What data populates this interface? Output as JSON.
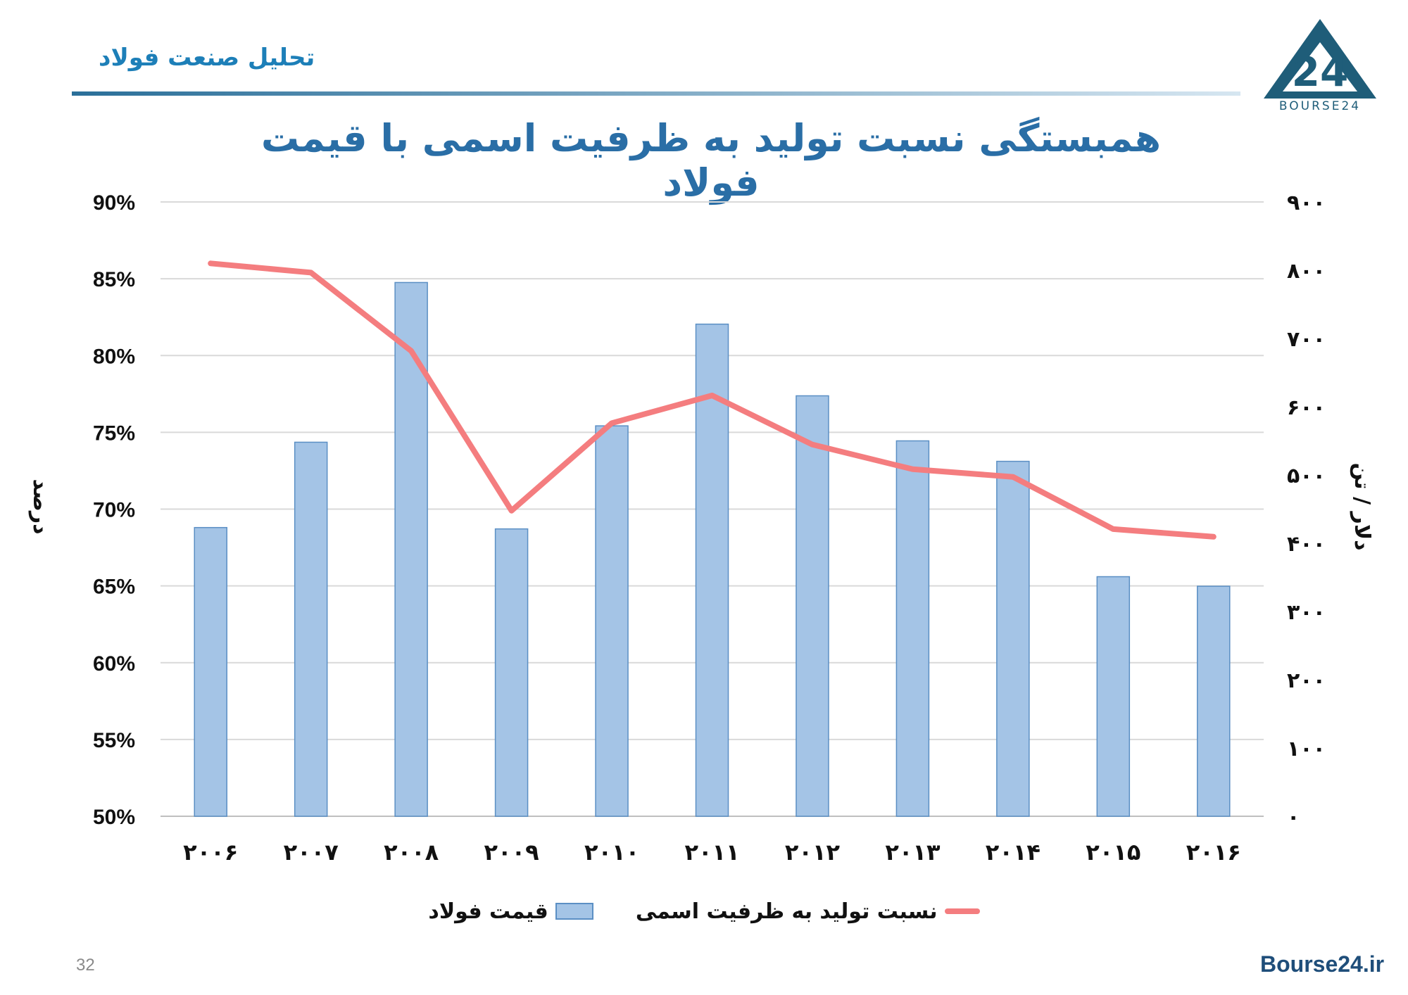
{
  "header": {
    "title": "تحلیل صنعت فولاد",
    "logo_text": "BOURSE24"
  },
  "chart_data": {
    "type": "bar",
    "title": "همبستگی نسبت تولید به ظرفیت اسمی با قیمت فولاد",
    "categories": [
      "۲۰۰۶",
      "۲۰۰۷",
      "۲۰۰۸",
      "۲۰۰۹",
      "۲۰۱۰",
      "۲۰۱۱",
      "۲۰۱۲",
      "۲۰۱۳",
      "۲۰۱۴",
      "۲۰۱۵",
      "۲۰۱۶"
    ],
    "ylabel_left": "درصد",
    "ylabel_right": "دلار / تن",
    "left_axis": {
      "min": 50,
      "max": 90,
      "step": 5,
      "tick_labels": [
        "50%",
        "55%",
        "60%",
        "65%",
        "70%",
        "75%",
        "80%",
        "85%",
        "90%"
      ]
    },
    "right_axis": {
      "min": 0,
      "max": 900,
      "step": 100,
      "tick_labels": [
        "۰",
        "۱۰۰",
        "۲۰۰",
        "۳۰۰",
        "۴۰۰",
        "۵۰۰",
        "۶۰۰",
        "۷۰۰",
        "۸۰۰",
        "۹۰۰"
      ]
    },
    "series": [
      {
        "name": "قیمت فولاد",
        "type": "bar",
        "axis": "right",
        "color": "#a4c4e6",
        "edge_color": "#5b8fc4",
        "values": [
          423,
          548,
          782,
          421,
          572,
          721,
          616,
          550,
          520,
          351,
          337
        ]
      },
      {
        "name": "نسبت تولید به ظرفیت اسمی",
        "type": "line",
        "axis": "left",
        "color": "#f47d7f",
        "values": [
          86.0,
          85.4,
          80.3,
          69.9,
          75.6,
          77.4,
          74.2,
          72.6,
          72.1,
          68.7,
          68.2
        ]
      }
    ],
    "legend_placement": "bottom",
    "grid": true
  },
  "footer": {
    "page_number": "32",
    "site": "Bourse24.ir"
  }
}
